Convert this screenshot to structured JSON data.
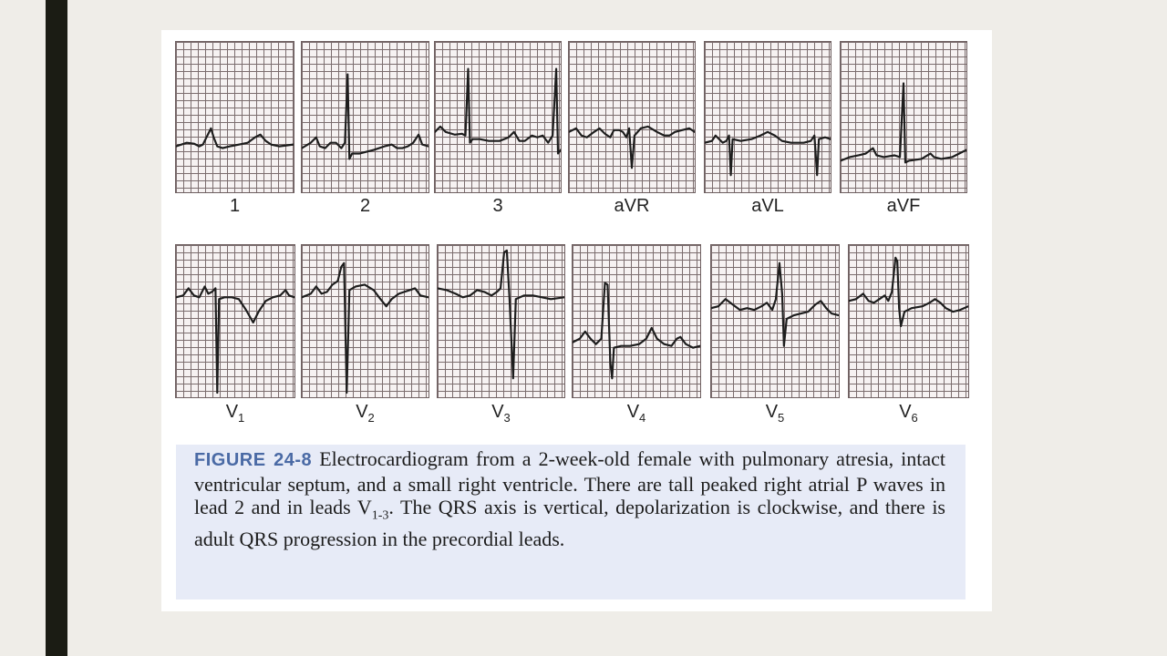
{
  "figure": {
    "label": "FIGURE 24-8",
    "caption_part1": "Electrocardiogram from a 2-week-old female with pulmonary atresia, intact ventricular septum, and a small right ventricle. There are tall peaked right atrial P waves in lead 2 and in leads V",
    "caption_sub": "1-3",
    "caption_part2": ". The QRS axis is vertical, depolarization is clockwise, and there is adult QRS progression in the precordial leads."
  },
  "leads": {
    "limb": [
      {
        "name": "1"
      },
      {
        "name": "2"
      },
      {
        "name": "3"
      },
      {
        "name": "aVR"
      },
      {
        "name": "aVL"
      },
      {
        "name": "aVF"
      }
    ],
    "precordial": [
      {
        "base": "V",
        "sub": "1"
      },
      {
        "base": "V",
        "sub": "2"
      },
      {
        "base": "V",
        "sub": "3"
      },
      {
        "base": "V",
        "sub": "4"
      },
      {
        "base": "V",
        "sub": "5"
      },
      {
        "base": "V",
        "sub": "6"
      }
    ]
  },
  "colors": {
    "side_bar": "#1b1c14",
    "grid_line": "#7b6d6e",
    "caption_bg": "#e7ebf7",
    "figure_label": "#4a6aa5"
  }
}
